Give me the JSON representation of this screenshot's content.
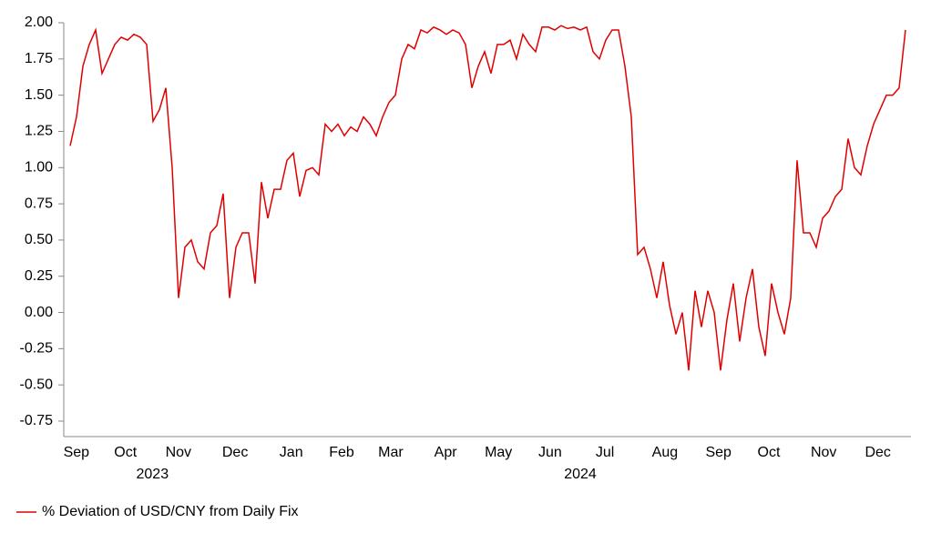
{
  "chart_data": {
    "type": "line",
    "series": [
      {
        "name": "% Deviation of USD/CNY from Daily Fix",
        "color": "#e00000",
        "values": [
          1.15,
          1.35,
          1.7,
          1.85,
          1.95,
          1.65,
          1.75,
          1.85,
          1.9,
          1.88,
          1.92,
          1.9,
          1.85,
          1.32,
          1.4,
          1.55,
          1.0,
          0.1,
          0.45,
          0.5,
          0.35,
          0.3,
          0.55,
          0.6,
          0.82,
          0.1,
          0.45,
          0.55,
          0.55,
          0.2,
          0.9,
          0.65,
          0.85,
          0.85,
          1.05,
          1.1,
          0.8,
          0.98,
          1.0,
          0.95,
          1.3,
          1.25,
          1.3,
          1.22,
          1.28,
          1.25,
          1.35,
          1.3,
          1.22,
          1.35,
          1.45,
          1.5,
          1.75,
          1.85,
          1.82,
          1.95,
          1.93,
          1.97,
          1.95,
          1.92,
          1.95,
          1.93,
          1.85,
          1.55,
          1.7,
          1.8,
          1.65,
          1.85,
          1.85,
          1.88,
          1.75,
          1.92,
          1.85,
          1.8,
          1.97,
          1.97,
          1.95,
          1.98,
          1.96,
          1.97,
          1.95,
          1.97,
          1.8,
          1.75,
          1.88,
          1.95,
          1.95,
          1.7,
          1.35,
          0.4,
          0.45,
          0.3,
          0.1,
          0.35,
          0.05,
          -0.15,
          0.0,
          -0.4,
          0.15,
          -0.1,
          0.15,
          0.0,
          -0.4,
          -0.05,
          0.2,
          -0.2,
          0.1,
          0.3,
          -0.1,
          -0.3,
          0.2,
          0.0,
          -0.15,
          0.1,
          1.05,
          0.55,
          0.55,
          0.45,
          0.65,
          0.7,
          0.8,
          0.85,
          1.2,
          1.0,
          0.95,
          1.15,
          1.3,
          1.4,
          1.5,
          1.5,
          1.55,
          1.95
        ]
      }
    ],
    "xlim": [
      0,
      131
    ],
    "xticks": [
      {
        "value": 0.4,
        "label": "Sep"
      },
      {
        "value": 8.1,
        "label": "Oct"
      },
      {
        "value": 16.4,
        "label": "Nov"
      },
      {
        "value": 25.3,
        "label": "Dec"
      },
      {
        "value": 34.1,
        "label": "Jan"
      },
      {
        "value": 42,
        "label": "Feb"
      },
      {
        "value": 49.7,
        "label": "Mar"
      },
      {
        "value": 58.3,
        "label": "Apr"
      },
      {
        "value": 66.6,
        "label": "May"
      },
      {
        "value": 74.7,
        "label": "Jun"
      },
      {
        "value": 83.3,
        "label": "Jul"
      },
      {
        "value": 92.7,
        "label": "Aug"
      },
      {
        "value": 101.1,
        "label": "Sep"
      },
      {
        "value": 109,
        "label": "Oct"
      },
      {
        "value": 117.6,
        "label": "Nov"
      },
      {
        "value": 126.1,
        "label": "Dec"
      }
    ],
    "years": [
      {
        "value": 12.9,
        "label": "2023"
      },
      {
        "value": 80,
        "label": "2024"
      }
    ],
    "ylim": [
      -0.75,
      2.0
    ],
    "yticks": [
      {
        "value": 2.0,
        "label": "2.00"
      },
      {
        "value": 1.75,
        "label": "1.75"
      },
      {
        "value": 1.5,
        "label": "1.50"
      },
      {
        "value": 1.25,
        "label": "1.25"
      },
      {
        "value": 1.0,
        "label": "1.00"
      },
      {
        "value": 0.75,
        "label": "0.75"
      },
      {
        "value": 0.5,
        "label": "0.50"
      },
      {
        "value": 0.25,
        "label": "0.25"
      },
      {
        "value": 0.0,
        "label": "0.00"
      },
      {
        "value": -0.25,
        "label": "-0.25"
      },
      {
        "value": -0.5,
        "label": "-0.50"
      },
      {
        "value": -0.75,
        "label": "-0.75"
      }
    ],
    "grid": false
  }
}
